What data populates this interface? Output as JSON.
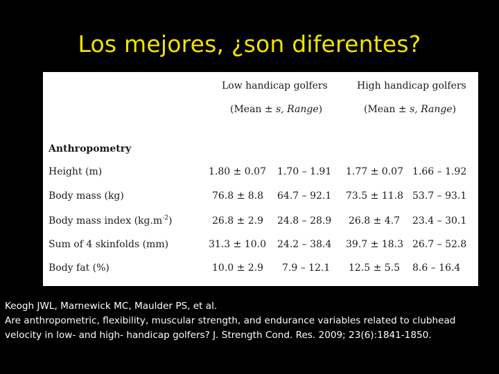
{
  "slide": {
    "title": "Los mejores, ¿son diferentes?"
  },
  "table": {
    "headers": {
      "low": "Low handicap golfers",
      "high": "High handicap golfers",
      "low_sub_pre": "(Mean ± ",
      "low_sub_it": "s, Range",
      "low_sub_post": ")",
      "high_sub_pre": "(Mean ± ",
      "high_sub_it": "s, Range",
      "high_sub_post": ")"
    },
    "section": "Anthropometry",
    "rows": [
      {
        "label": "Height (m)",
        "low_mean": "1.80 ± 0.07",
        "low_range": "1.70 – 1.91",
        "high_mean": "1.77 ± 0.07",
        "high_range": "1.66 – 1.92"
      },
      {
        "label": "Body mass (kg)",
        "low_mean": "76.8 ± 8.8",
        "low_range": "64.7 – 92.1",
        "high_mean": "73.5 ± 11.8",
        "high_range": "53.7 – 93.1"
      },
      {
        "label": "Body mass index (kg.m",
        "label_sup": "-2",
        "label_end": ")",
        "low_mean": "26.8 ± 2.9",
        "low_range": "24.8 – 28.9",
        "high_mean": "26.8 ± 4.7",
        "high_range": "23.4 – 30.1"
      },
      {
        "label": "Sum of 4 skinfolds (mm)",
        "low_mean": "31.3 ± 10.0",
        "low_range": "24.2 – 38.4",
        "high_mean": "39.7 ± 18.3",
        "high_range": "26.7 – 52.8"
      },
      {
        "label": "Body fat (%)",
        "low_mean": "10.0 ± 2.9",
        "low_range": "7.9 – 12.1",
        "high_mean": "12.5 ± 5.5",
        "high_range": "8.6 – 16.4"
      }
    ]
  },
  "citation": {
    "line1": "Keogh JWL, Marnewick MC, Maulder PS, et al.",
    "line2": "Are anthropometric, flexibility, muscular strength, and endurance variables related to clubhead",
    "line3": "velocity in low- and high- handicap golfers? J. Strength Cond. Res. 2009; 23(6):1841-1850."
  },
  "colors": {
    "background": "#000000",
    "title": "#f2e300",
    "table_bg": "#ffffff",
    "citation_text": "#ffffff"
  }
}
